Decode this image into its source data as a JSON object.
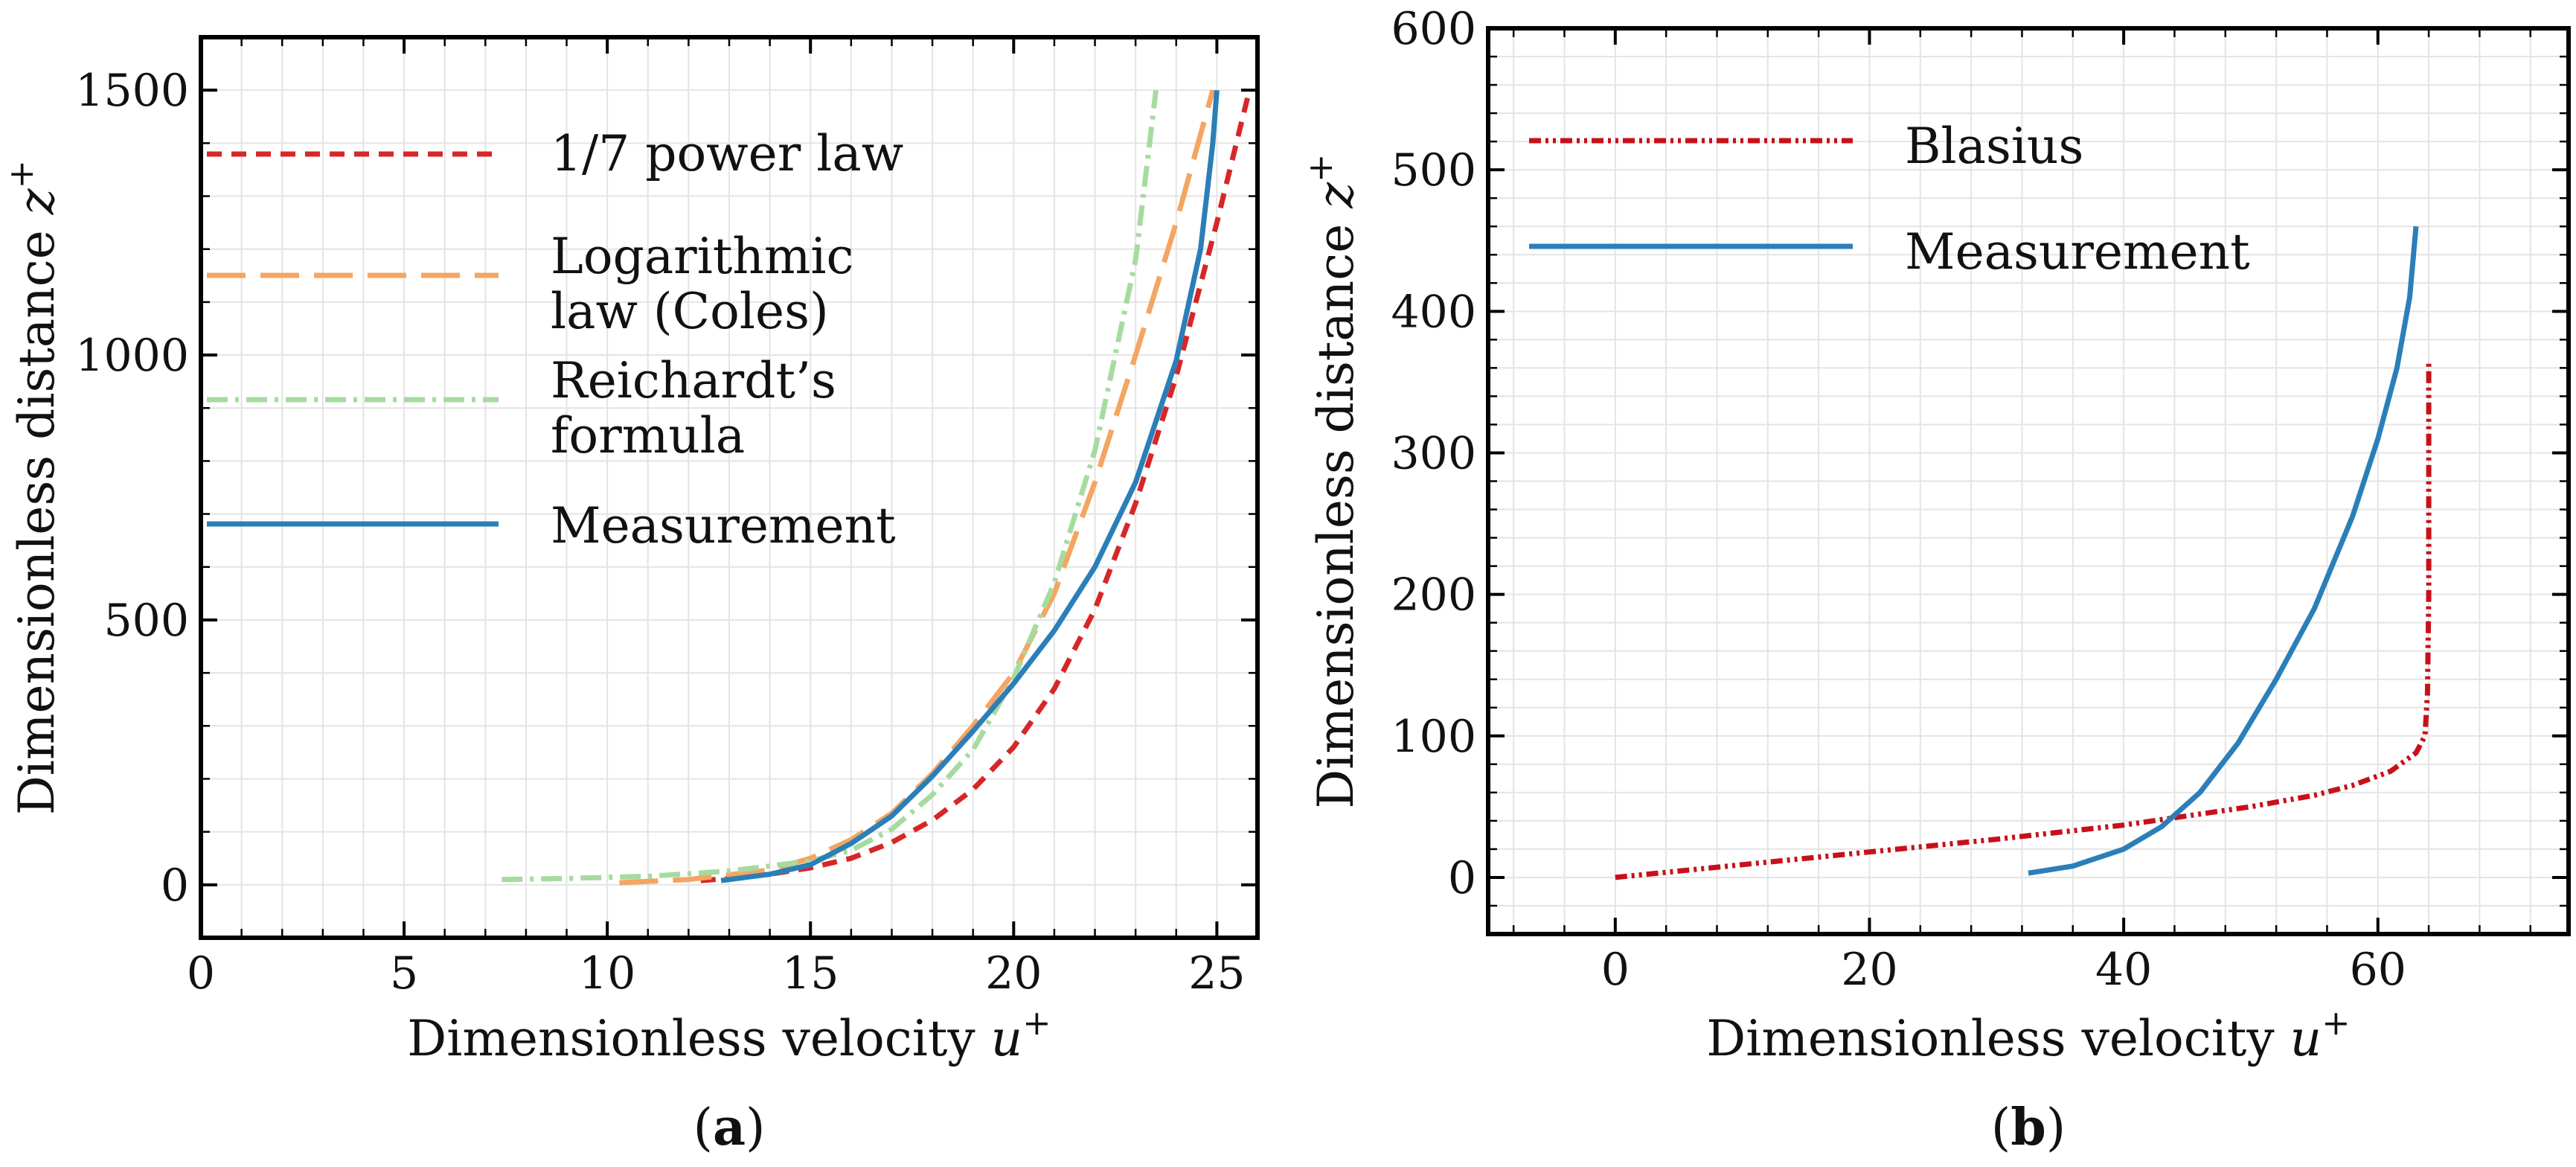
{
  "colors": {
    "power_law": "#d62728",
    "log_law": "#f4a562",
    "reichardt": "#a6dba0",
    "measurement": "#2b7fb8",
    "blasius": "#c8101a"
  },
  "chart_data": [
    {
      "id": "a",
      "type": "line",
      "panel_label": "(a)",
      "panel_open": "(",
      "panel_letter": "a",
      "panel_close": ")",
      "xlabel": "Dimensionless velocity ",
      "xlabel_symbol": "u",
      "xlabel_sup": "+",
      "ylabel": "Dimensionless distance ",
      "ylabel_symbol": "z",
      "ylabel_sup": "+",
      "xlim": [
        0,
        26
      ],
      "ylim": [
        -100,
        1600
      ],
      "xticks": [
        0,
        5,
        10,
        15,
        20,
        25
      ],
      "yticks": [
        0,
        500,
        1000,
        1500
      ],
      "grid": true,
      "legend_position": "upper-left",
      "series": [
        {
          "name": "1/7 power law",
          "legend_lines": [
            "1/7 power law"
          ],
          "style": "dashed",
          "color": "#d62728",
          "points": [
            [
              12.3,
              8
            ],
            [
              13,
              12
            ],
            [
              14,
              20
            ],
            [
              15,
              32
            ],
            [
              16,
              50
            ],
            [
              17,
              80
            ],
            [
              18,
              122
            ],
            [
              19,
              180
            ],
            [
              20,
              260
            ],
            [
              21,
              370
            ],
            [
              22,
              520
            ],
            [
              23,
              720
            ],
            [
              24,
              960
            ],
            [
              25,
              1250
            ],
            [
              25.8,
              1500
            ]
          ]
        },
        {
          "name": "Logarithmic law (Coles)",
          "legend_lines": [
            "Logarithmic",
            "law (Coles)"
          ],
          "style": "longdash",
          "color": "#f4a562",
          "points": [
            [
              10.3,
              4
            ],
            [
              12,
              10
            ],
            [
              14,
              28
            ],
            [
              15,
              50
            ],
            [
              16,
              85
            ],
            [
              17,
              135
            ],
            [
              18,
              210
            ],
            [
              19,
              300
            ],
            [
              20,
              400
            ],
            [
              21,
              550
            ],
            [
              22,
              760
            ],
            [
              23,
              1000
            ],
            [
              24,
              1250
            ],
            [
              24.9,
              1500
            ]
          ]
        },
        {
          "name": "Reichardt's formula",
          "legend_lines": [
            "Reichardt’s",
            "formula"
          ],
          "style": "dashdot",
          "color": "#a6dba0",
          "points": [
            [
              7.4,
              10
            ],
            [
              9,
              12
            ],
            [
              11,
              16
            ],
            [
              13,
              26
            ],
            [
              15,
              45
            ],
            [
              16,
              65
            ],
            [
              17,
              105
            ],
            [
              18,
              170
            ],
            [
              19,
              255
            ],
            [
              20,
              390
            ],
            [
              21,
              570
            ],
            [
              22,
              820
            ],
            [
              23,
              1180
            ],
            [
              23.5,
              1500
            ]
          ]
        },
        {
          "name": "Measurement",
          "legend_lines": [
            "Measurement"
          ],
          "style": "solid",
          "color": "#2b7fb8",
          "points": [
            [
              12.8,
              8
            ],
            [
              14,
              20
            ],
            [
              15,
              38
            ],
            [
              16,
              78
            ],
            [
              17,
              130
            ],
            [
              18,
              205
            ],
            [
              19,
              290
            ],
            [
              20,
              380
            ],
            [
              21,
              480
            ],
            [
              22,
              600
            ],
            [
              23,
              760
            ],
            [
              24,
              990
            ],
            [
              24.6,
              1200
            ],
            [
              24.9,
              1400
            ],
            [
              25,
              1500
            ]
          ]
        }
      ]
    },
    {
      "id": "b",
      "type": "line",
      "panel_label": "(b)",
      "panel_open": "(",
      "panel_letter": "b",
      "panel_close": ")",
      "xlabel": "Dimensionless velocity ",
      "xlabel_symbol": "u",
      "xlabel_sup": "+",
      "ylabel": "Dimensionless distance ",
      "ylabel_symbol": "z",
      "ylabel_sup": "+",
      "xlim": [
        -10,
        75
      ],
      "ylim": [
        -40,
        600
      ],
      "xticks": [
        0,
        20,
        40,
        60
      ],
      "yticks": [
        0,
        100,
        200,
        300,
        400,
        500,
        600
      ],
      "grid": true,
      "legend_position": "upper-left",
      "series": [
        {
          "name": "Blasius",
          "legend_lines": [
            "Blasius"
          ],
          "style": "dashdotdot",
          "color": "#c8101a",
          "points": [
            [
              0,
              0
            ],
            [
              10,
              9
            ],
            [
              20,
              18
            ],
            [
              30,
              27
            ],
            [
              40,
              37
            ],
            [
              50,
              50
            ],
            [
              55,
              58
            ],
            [
              58,
              65
            ],
            [
              61,
              75
            ],
            [
              63,
              88
            ],
            [
              63.7,
              100
            ],
            [
              63.9,
              130
            ],
            [
              64,
              200
            ],
            [
              64,
              300
            ],
            [
              64,
              365
            ]
          ]
        },
        {
          "name": "Measurement",
          "legend_lines": [
            "Measurement"
          ],
          "style": "solid",
          "color": "#2b7fb8",
          "points": [
            [
              32.5,
              3
            ],
            [
              36,
              8
            ],
            [
              40,
              20
            ],
            [
              43,
              36
            ],
            [
              46,
              60
            ],
            [
              49,
              95
            ],
            [
              52,
              140
            ],
            [
              55,
              190
            ],
            [
              58,
              255
            ],
            [
              60,
              310
            ],
            [
              61.5,
              360
            ],
            [
              62.5,
              410
            ],
            [
              63,
              460
            ]
          ]
        }
      ]
    }
  ]
}
